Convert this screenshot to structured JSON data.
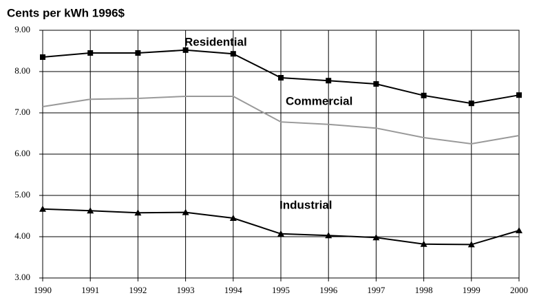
{
  "chart_data": {
    "type": "line",
    "title": "Cents per kWh 1996$",
    "x": [
      1990,
      1991,
      1992,
      1993,
      1994,
      1995,
      1996,
      1997,
      1998,
      1999,
      2000
    ],
    "xlim": [
      1990,
      2000
    ],
    "xticks": [
      1990,
      1991,
      1992,
      1993,
      1994,
      1995,
      1996,
      1997,
      1998,
      1999,
      2000
    ],
    "ylim": [
      3,
      9
    ],
    "yticks": [
      {
        "value": 3,
        "label": "3.00"
      },
      {
        "value": 4,
        "label": "4.00"
      },
      {
        "value": 5,
        "label": "5.00"
      },
      {
        "value": 6,
        "label": "6.00"
      },
      {
        "value": 7,
        "label": "7.00"
      },
      {
        "value": 8,
        "label": "8.00"
      },
      {
        "value": 9,
        "label": "9.00"
      }
    ],
    "grid": true,
    "series": [
      {
        "name": "Residential",
        "color": "#000000",
        "marker": "square",
        "values": [
          8.35,
          8.45,
          8.45,
          8.52,
          8.43,
          7.85,
          7.78,
          7.7,
          7.42,
          7.23,
          7.43
        ]
      },
      {
        "name": "Commercial",
        "color": "#999999",
        "marker": "none",
        "values": [
          7.15,
          7.33,
          7.35,
          7.4,
          7.4,
          6.78,
          6.72,
          6.63,
          6.4,
          6.25,
          6.45
        ]
      },
      {
        "name": "Industrial",
        "color": "#000000",
        "marker": "triangle",
        "values": [
          4.67,
          4.63,
          4.58,
          4.59,
          4.45,
          4.07,
          4.03,
          3.98,
          3.82,
          3.81,
          4.15
        ]
      }
    ]
  }
}
